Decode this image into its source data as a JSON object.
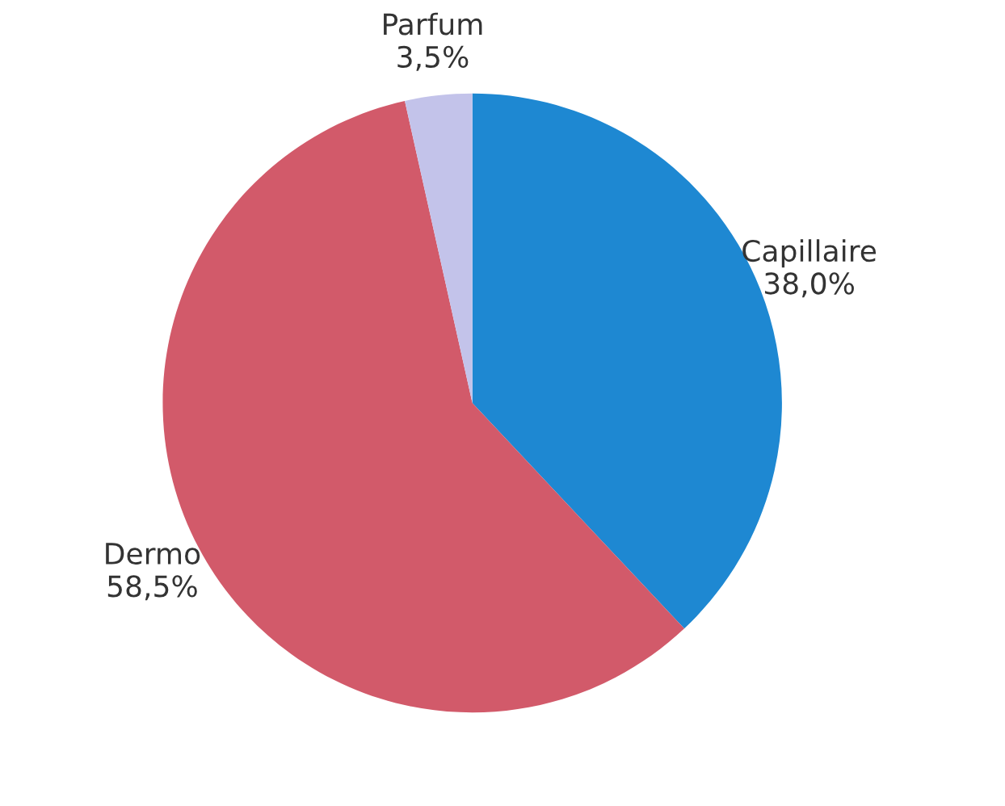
{
  "chart_data": {
    "type": "pie",
    "categories": [
      "Capillaire",
      "Dermo",
      "Parfum"
    ],
    "values": [
      38.0,
      58.5,
      3.5
    ],
    "value_labels": [
      "38,0%",
      "58,5%",
      "3,5%"
    ],
    "colors": [
      "#1e88d2",
      "#d25a6a",
      "#c3c3ea"
    ],
    "legend": false
  }
}
